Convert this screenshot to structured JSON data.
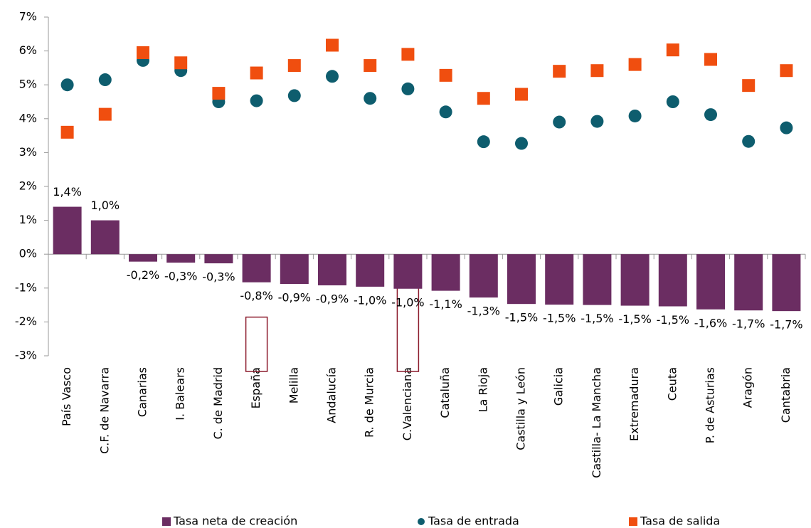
{
  "chart_data": {
    "type": "bar-dot",
    "categories": [
      "País Vasco",
      "C.F. de Navarra",
      "Canarias",
      "I. Balears",
      "C. de Madrid",
      "España",
      "Melilla",
      "Andalucía",
      "R. de Murcia",
      "C.Valenciana",
      "Cataluña",
      "La Rioja",
      "Castilla y León",
      "Galicia",
      "Castilla- La Mancha",
      "Extremadura",
      "Ceuta",
      "P. de Asturias",
      "Aragón",
      "Cantabria"
    ],
    "highlight": [
      5,
      9
    ],
    "series": [
      {
        "name": "Tasa neta de creación",
        "kind": "bar",
        "color": "#6b2d62",
        "values": [
          1.4,
          1.0,
          -0.22,
          -0.25,
          -0.27,
          -0.83,
          -0.88,
          -0.92,
          -0.96,
          -1.02,
          -1.08,
          -1.28,
          -1.47,
          -1.49,
          -1.5,
          -1.52,
          -1.54,
          -1.63,
          -1.66,
          -1.68
        ],
        "value_labels": [
          "1,4%",
          "1,0%",
          "-0,2%",
          "-0,3%",
          "-0,3%",
          "-0,8%",
          "-0,9%",
          "-0,9%",
          "-1,0%",
          "-1,0%",
          "-1,1%",
          "-1,3%",
          "-1,5%",
          "-1,5%",
          "-1,5%",
          "-1,5%",
          "-1,5%",
          "-1,6%",
          "-1,7%",
          "-1,7%"
        ]
      },
      {
        "name": "Tasa de entrada",
        "kind": "circle",
        "color": "#0e5d6e",
        "values": [
          5.0,
          5.15,
          5.72,
          5.42,
          4.5,
          4.53,
          4.68,
          5.25,
          4.6,
          4.88,
          4.2,
          3.32,
          3.27,
          3.9,
          3.92,
          4.08,
          4.5,
          4.12,
          3.33,
          3.73
        ]
      },
      {
        "name": "Tasa de salida",
        "kind": "square",
        "color": "#f04e0f",
        "values": [
          3.6,
          4.13,
          5.95,
          5.65,
          4.75,
          5.35,
          5.57,
          6.17,
          5.57,
          5.9,
          5.28,
          4.6,
          4.72,
          5.4,
          5.42,
          5.6,
          6.03,
          5.75,
          4.98,
          5.42
        ]
      }
    ],
    "ylim": [
      -3,
      7
    ],
    "yticks": [
      {
        "value": -3,
        "label": "-3%"
      },
      {
        "value": -2,
        "label": "-2%"
      },
      {
        "value": -1,
        "label": "-1%"
      },
      {
        "value": 0,
        "label": "0%"
      },
      {
        "value": 1,
        "label": "1%"
      },
      {
        "value": 2,
        "label": "2%"
      },
      {
        "value": 3,
        "label": "3%"
      },
      {
        "value": 4,
        "label": "4%"
      },
      {
        "value": 5,
        "label": "5%"
      },
      {
        "value": 6,
        "label": "6%"
      },
      {
        "value": 7,
        "label": "7%"
      }
    ],
    "legend": "bottom"
  }
}
